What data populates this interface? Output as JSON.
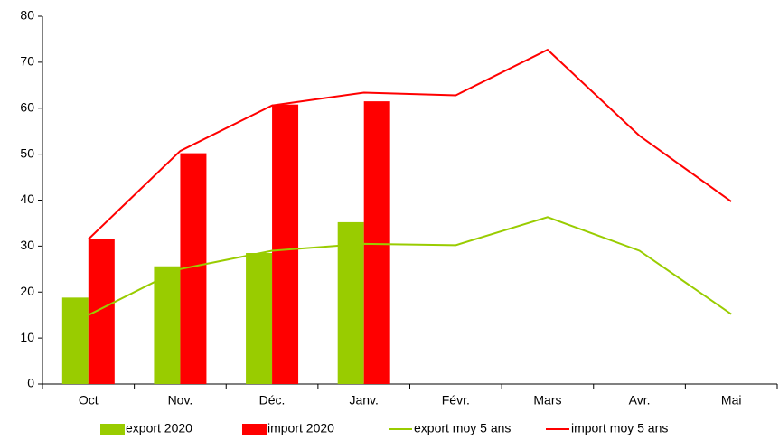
{
  "chart_data": {
    "type": "bar",
    "categories": [
      "Oct",
      "Nov.",
      "Déc.",
      "Janv.",
      "Févr.",
      "Mars",
      "Avr.",
      "Mai"
    ],
    "series": [
      {
        "name": "export 2020",
        "type": "bar",
        "color": "#99cc00",
        "values": [
          18.8,
          25.6,
          28.5,
          35.2,
          null,
          null,
          null,
          null
        ]
      },
      {
        "name": "import 2020",
        "type": "bar",
        "color": "#ff0000",
        "values": [
          31.5,
          50.2,
          60.8,
          61.5,
          null,
          null,
          null,
          null
        ]
      },
      {
        "name": "export moy 5 ans",
        "type": "line",
        "color": "#99cc00",
        "values": [
          15,
          25,
          29,
          30.5,
          30.2,
          36.3,
          29,
          15.2
        ]
      },
      {
        "name": "import moy 5 ans",
        "type": "line",
        "color": "#ff0000",
        "values": [
          31.5,
          50.7,
          60.6,
          63.4,
          62.8,
          72.7,
          54,
          39.7
        ]
      }
    ],
    "ylim": [
      0,
      80
    ],
    "yticks": [
      0,
      10,
      20,
      30,
      40,
      50,
      60,
      70,
      80
    ],
    "grid": false,
    "legend": "bottom"
  }
}
